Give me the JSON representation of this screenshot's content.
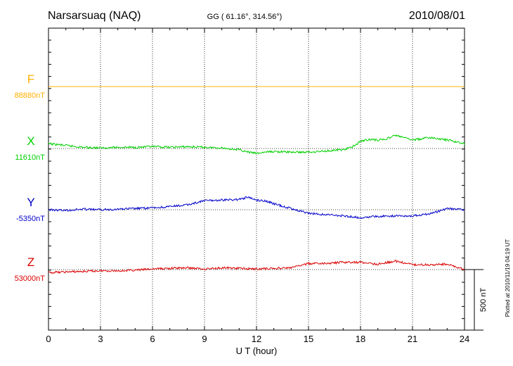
{
  "header": {
    "station": "Narsarsuaq (NAQ)",
    "coords": "GG ( 61.16°, 314.56°)",
    "date": "2010/08/01"
  },
  "plotted_note": "Plotted at 2010/11/19 04:19 UT",
  "scale_label": "500 nT",
  "chart_data": {
    "type": "line",
    "xlabel": "U T (hour)",
    "xlim": [
      0,
      24
    ],
    "xticks": [
      "0",
      "3",
      "6",
      "9",
      "12",
      "15",
      "18",
      "21",
      "24"
    ],
    "scale_bar_nT": 500,
    "grid": "dotted vertical at every 3 hours",
    "series": [
      {
        "name": "F",
        "baseline_label": "88880nT",
        "baseline_nT": 88880,
        "color": "#ffb000",
        "t": [
          0,
          3,
          6,
          9,
          12,
          15,
          18,
          21,
          24
        ],
        "dev": [
          0,
          0,
          0,
          0,
          0,
          0,
          0,
          0,
          0
        ]
      },
      {
        "name": "X",
        "baseline_label": "11610nT",
        "baseline_nT": 11610,
        "color": "#00d000",
        "t": [
          0,
          1,
          2,
          3,
          4,
          5,
          6,
          7,
          8,
          9,
          10,
          11,
          11.5,
          12,
          12.5,
          13,
          14,
          15,
          16,
          17,
          17.5,
          18,
          18.5,
          19,
          19.5,
          20,
          20.5,
          21,
          22,
          23,
          24
        ],
        "dev": [
          8,
          5,
          2,
          1,
          2,
          2,
          3,
          2,
          3,
          2,
          1,
          -2,
          -6,
          -8,
          -6,
          -5,
          -6,
          -6,
          -4,
          -2,
          2,
          12,
          15,
          14,
          16,
          22,
          18,
          14,
          18,
          14,
          8
        ]
      },
      {
        "name": "Y",
        "baseline_label": "-5350nT",
        "baseline_nT": -5350,
        "color": "#0000cc",
        "t": [
          0,
          1,
          2,
          3,
          4,
          5,
          6,
          7,
          8,
          9,
          10,
          11,
          11.5,
          12,
          12.5,
          13,
          14,
          15,
          16,
          17,
          18,
          19,
          20,
          21,
          22,
          23,
          24
        ],
        "dev": [
          0,
          -1,
          1,
          0,
          1,
          2,
          3,
          5,
          8,
          15,
          16,
          17,
          21,
          16,
          15,
          10,
          2,
          -6,
          -8,
          -10,
          -13,
          -11,
          -10,
          -10,
          -7,
          2,
          0
        ]
      },
      {
        "name": "Z",
        "baseline_label": "53000nT",
        "baseline_nT": 53000,
        "color": "#dd0000",
        "t": [
          0,
          1,
          2,
          3,
          4,
          5,
          6,
          7,
          8,
          9,
          10,
          11,
          12,
          13,
          14,
          15,
          16,
          17,
          18,
          19,
          20,
          21,
          22,
          23,
          24
        ],
        "dev": [
          -5,
          -4,
          -3,
          -2,
          -2,
          -1,
          1,
          2,
          3,
          1,
          3,
          2,
          1,
          2,
          3,
          10,
          10,
          12,
          12,
          9,
          14,
          8,
          8,
          9,
          0
        ]
      }
    ]
  }
}
